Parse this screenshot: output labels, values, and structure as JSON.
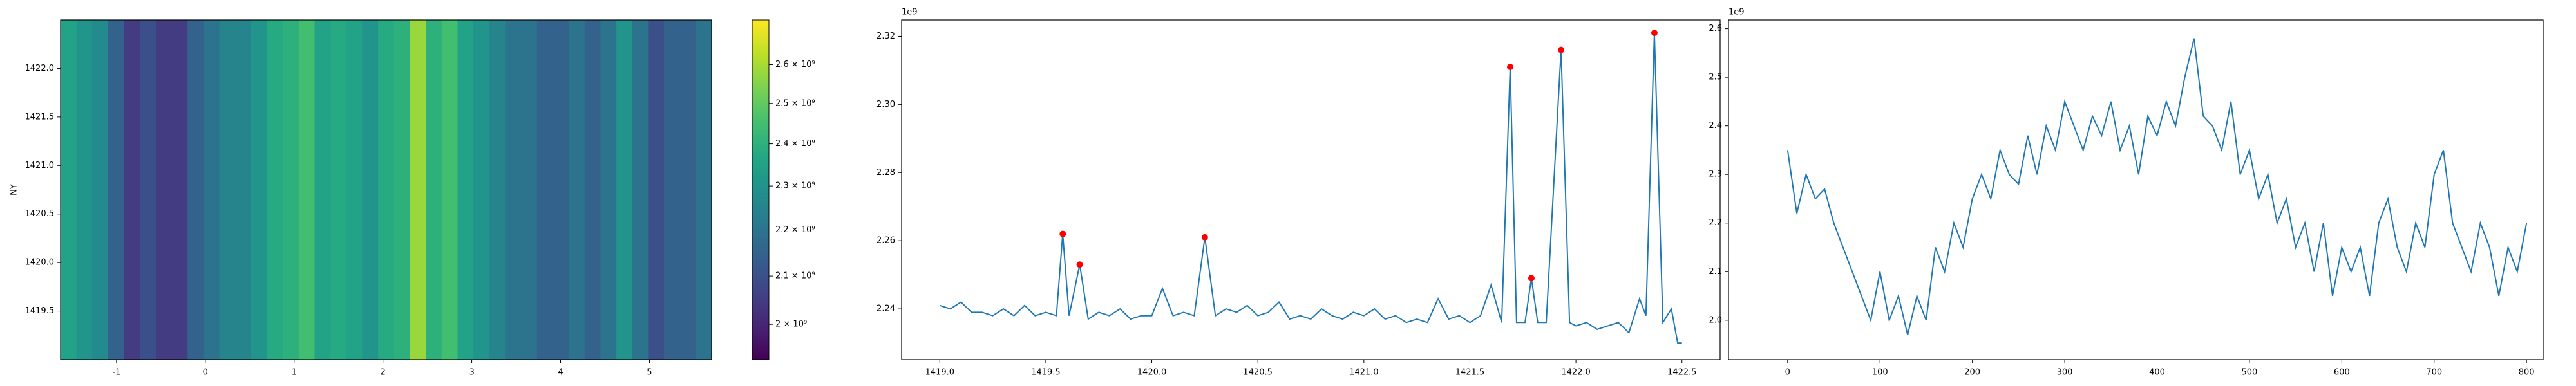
{
  "chart_data": [
    {
      "type": "heatmap",
      "y_label": "NY",
      "xlim": [
        -1.63,
        5.7
      ],
      "ylim": [
        1419.0,
        1422.5
      ],
      "xticks": [
        -1,
        0,
        1,
        2,
        3,
        4,
        5
      ],
      "yticks": [
        1419.5,
        {
          "value": 1420.0,
          "label": "1420.0"
        },
        1420.5,
        {
          "value": 1421.0,
          "label": "1421.0"
        },
        1421.5,
        {
          "value": 1422.0,
          "label": "1422.0"
        }
      ],
      "values": [
        2350000000,
        2300000000,
        2270000000,
        2150000000,
        2050000000,
        2100000000,
        2050000000,
        2050000000,
        2150000000,
        2200000000,
        2250000000,
        2250000000,
        2300000000,
        2380000000,
        2400000000,
        2450000000,
        2350000000,
        2380000000,
        2350000000,
        2300000000,
        2380000000,
        2400000000,
        2580000000,
        2400000000,
        2450000000,
        2350000000,
        2300000000,
        2250000000,
        2200000000,
        2200000000,
        2150000000,
        2150000000,
        2200000000,
        2150000000,
        2200000000,
        2300000000,
        2200000000,
        2100000000,
        2150000000,
        2150000000,
        2200000000
      ],
      "colormap": "viridis",
      "log_color": true,
      "clim": [
        1930000000,
        2720000000
      ],
      "cticks": [
        {
          "value": 2000000000,
          "label": "2 × 10⁹"
        },
        {
          "value": 2100000000,
          "label": "2.1 × 10⁹"
        },
        {
          "value": 2200000000,
          "label": "2.2 × 10⁹"
        },
        {
          "value": 2300000000,
          "label": "2.3 × 10⁹"
        },
        {
          "value": 2400000000,
          "label": "2.4 × 10⁹"
        },
        {
          "value": 2500000000,
          "label": "2.5 × 10⁹"
        },
        {
          "value": 2600000000,
          "label": "2.6 × 10⁹"
        }
      ]
    },
    {
      "type": "line",
      "offset_text": "1e9",
      "xlim": [
        1418.82,
        1422.68
      ],
      "ylim": [
        2.2251,
        2.3248
      ],
      "xticks": [
        {
          "value": 1419.0,
          "label": "1419.0"
        },
        1419.5,
        {
          "value": 1420.0,
          "label": "1420.0"
        },
        1420.5,
        {
          "value": 1421.0,
          "label": "1421.0"
        },
        1421.5,
        {
          "value": 1422.0,
          "label": "1422.0"
        },
        1422.5
      ],
      "yticks": [
        2.24,
        2.26,
        2.28,
        {
          "value": 2.3,
          "label": "2.30"
        },
        2.32
      ],
      "series": [
        {
          "color": "#1f77b4",
          "style": "line",
          "x": [
            1419.0,
            1419.05,
            1419.1,
            1419.15,
            1419.2,
            1419.25,
            1419.3,
            1419.35,
            1419.4,
            1419.45,
            1419.5,
            1419.55,
            1419.58,
            1419.61,
            1419.66,
            1419.7,
            1419.75,
            1419.8,
            1419.85,
            1419.9,
            1419.95,
            1420.0,
            1420.05,
            1420.1,
            1420.15,
            1420.2,
            1420.25,
            1420.3,
            1420.35,
            1420.4,
            1420.45,
            1420.5,
            1420.55,
            1420.6,
            1420.65,
            1420.7,
            1420.75,
            1420.8,
            1420.85,
            1420.9,
            1420.95,
            1421.0,
            1421.05,
            1421.1,
            1421.15,
            1421.2,
            1421.25,
            1421.3,
            1421.35,
            1421.4,
            1421.45,
            1421.5,
            1421.55,
            1421.6,
            1421.65,
            1421.69,
            1421.72,
            1421.76,
            1421.79,
            1421.82,
            1421.86,
            1421.93,
            1421.97,
            1422.0,
            1422.05,
            1422.1,
            1422.15,
            1422.2,
            1422.25,
            1422.3,
            1422.33,
            1422.37,
            1422.41,
            1422.45,
            1422.48,
            1422.5
          ],
          "values": [
            2.241,
            2.24,
            2.242,
            2.239,
            2.239,
            2.238,
            2.24,
            2.238,
            2.241,
            2.238,
            2.239,
            2.238,
            2.262,
            2.238,
            2.253,
            2.237,
            2.239,
            2.238,
            2.24,
            2.237,
            2.238,
            2.238,
            2.246,
            2.238,
            2.239,
            2.238,
            2.261,
            2.238,
            2.24,
            2.239,
            2.241,
            2.238,
            2.239,
            2.242,
            2.237,
            2.238,
            2.237,
            2.24,
            2.238,
            2.237,
            2.239,
            2.238,
            2.24,
            2.237,
            2.238,
            2.236,
            2.237,
            2.236,
            2.243,
            2.237,
            2.238,
            2.236,
            2.238,
            2.247,
            2.236,
            2.311,
            2.236,
            2.236,
            2.249,
            2.236,
            2.236,
            2.316,
            2.236,
            2.235,
            2.236,
            2.234,
            2.235,
            2.236,
            2.233,
            2.243,
            2.238,
            2.321,
            2.236,
            2.24,
            2.23,
            2.23
          ]
        },
        {
          "color": "#ff0000",
          "style": "markers",
          "x": [
            1419.58,
            1419.66,
            1420.25,
            1421.69,
            1421.79,
            1421.93,
            1422.37
          ],
          "values": [
            2.262,
            2.253,
            2.261,
            2.311,
            2.249,
            2.316,
            2.321
          ]
        }
      ]
    },
    {
      "type": "line",
      "offset_text": "1e9",
      "xlim": [
        -64,
        818
      ],
      "ylim": [
        1.919,
        2.618
      ],
      "xticks": [
        0,
        100,
        200,
        300,
        400,
        500,
        600,
        700,
        800
      ],
      "yticks": [
        {
          "value": 2.0,
          "label": "2.0"
        },
        2.1,
        2.2,
        2.3,
        2.4,
        2.5,
        2.6
      ],
      "series": [
        {
          "color": "#1f77b4",
          "style": "line",
          "x": [
            0,
            10,
            20,
            30,
            40,
            50,
            60,
            70,
            80,
            90,
            100,
            110,
            120,
            130,
            140,
            150,
            160,
            170,
            180,
            190,
            200,
            210,
            220,
            230,
            240,
            250,
            260,
            270,
            280,
            290,
            300,
            310,
            320,
            330,
            340,
            350,
            360,
            370,
            380,
            390,
            400,
            410,
            420,
            430,
            440,
            450,
            460,
            470,
            480,
            490,
            500,
            510,
            520,
            530,
            540,
            550,
            560,
            570,
            580,
            590,
            600,
            610,
            620,
            630,
            640,
            650,
            660,
            670,
            680,
            690,
            700,
            710,
            720,
            730,
            740,
            750,
            760,
            770,
            780,
            790,
            800
          ],
          "values": [
            2.35,
            2.22,
            2.3,
            2.25,
            2.27,
            2.2,
            2.15,
            2.1,
            2.05,
            2.0,
            2.1,
            2.0,
            2.05,
            1.97,
            2.05,
            2.0,
            2.15,
            2.1,
            2.2,
            2.15,
            2.25,
            2.3,
            2.25,
            2.35,
            2.3,
            2.28,
            2.38,
            2.3,
            2.4,
            2.35,
            2.45,
            2.4,
            2.35,
            2.42,
            2.38,
            2.45,
            2.35,
            2.4,
            2.3,
            2.42,
            2.38,
            2.45,
            2.4,
            2.5,
            2.58,
            2.42,
            2.4,
            2.35,
            2.45,
            2.3,
            2.35,
            2.25,
            2.3,
            2.2,
            2.25,
            2.15,
            2.2,
            2.1,
            2.2,
            2.05,
            2.15,
            2.1,
            2.15,
            2.05,
            2.2,
            2.25,
            2.15,
            2.1,
            2.2,
            2.15,
            2.3,
            2.35,
            2.2,
            2.15,
            2.1,
            2.2,
            2.15,
            2.05,
            2.15,
            2.1,
            2.2
          ]
        }
      ]
    }
  ]
}
